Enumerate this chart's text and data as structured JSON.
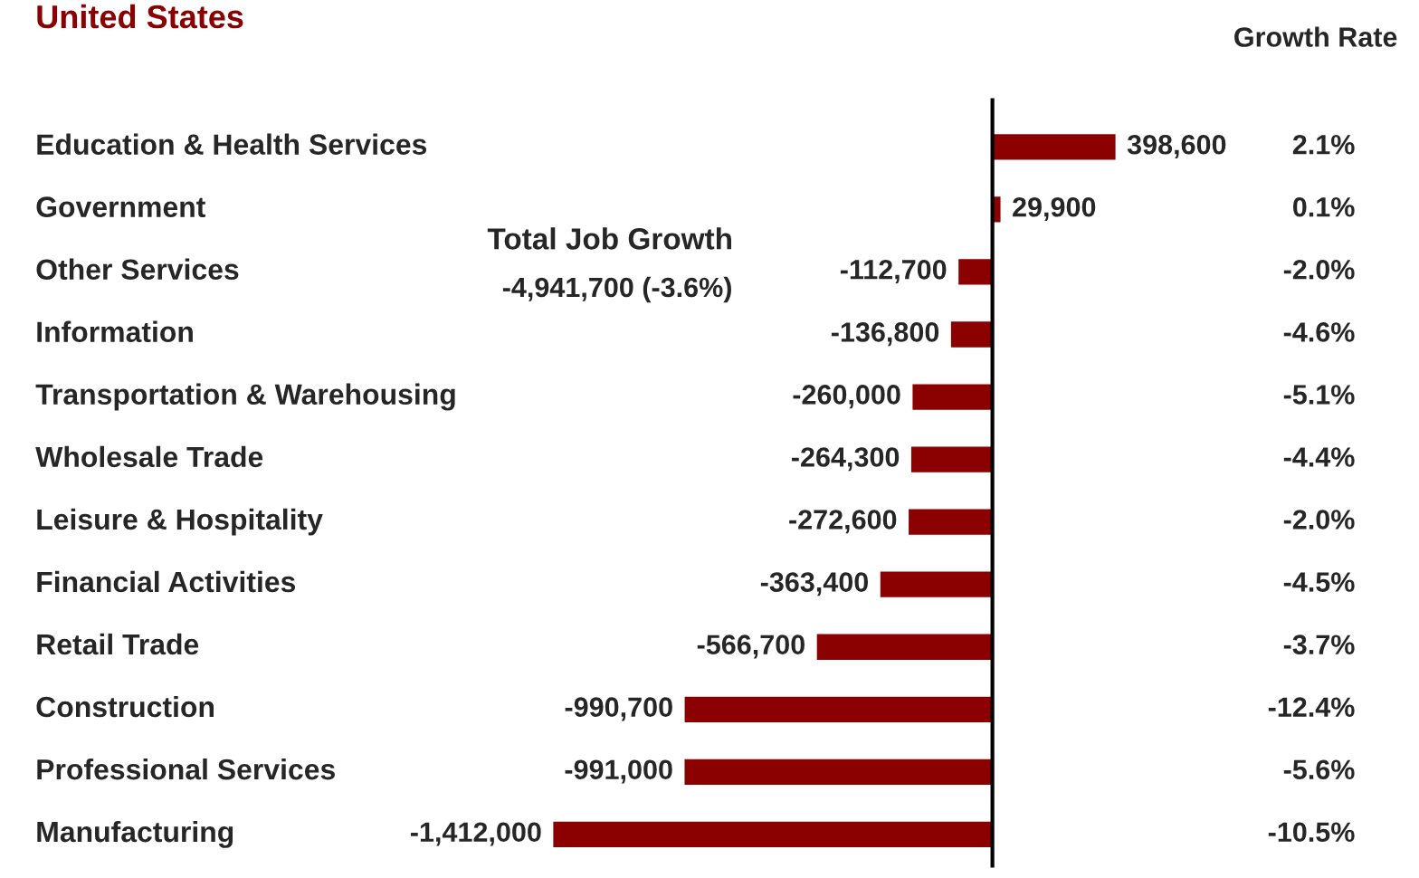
{
  "chart_data": {
    "type": "bar",
    "orientation": "horizontal",
    "title": "United States",
    "categories": [
      "Education & Health Services",
      "Government",
      "Other Services",
      "Information",
      "Transportation & Warehousing",
      "Wholesale Trade",
      "Leisure & Hospitality",
      "Financial Activities",
      "Retail Trade",
      "Construction",
      "Professional Services",
      "Manufacturing"
    ],
    "values": [
      398600,
      29900,
      -112700,
      -136800,
      -260000,
      -264300,
      -272600,
      -363400,
      -566700,
      -990700,
      -991000,
      -1412000
    ],
    "value_labels": [
      "398,600",
      "29,900",
      "-112,700",
      "-136,800",
      "-260,000",
      "-264,300",
      "-272,600",
      "-363,400",
      "-566,700",
      "-990,700",
      "-991,000",
      "-1,412,000"
    ],
    "color": "#8b0000",
    "annotations": [
      "Total Job Growth",
      "-4,941,700 (-3.6%)",
      "Growth Rate",
      "2.1%",
      "0.1%",
      "-2.0%",
      "-4.6%",
      "-5.1%",
      "-4.4%",
      "-2.0%",
      "-4.5%",
      "-3.7%",
      "-12.4%",
      "-5.6%",
      "-10.5%"
    ]
  }
}
